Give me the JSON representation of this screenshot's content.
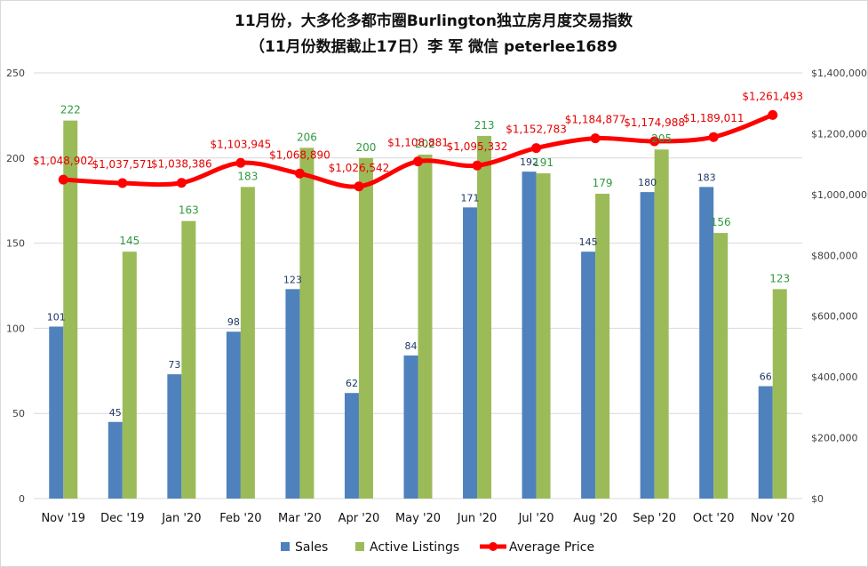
{
  "chart_data": {
    "type": "bar",
    "title": [
      "11月份，大多伦多都市圈Burlington独立房月度交易指数",
      "（11月份数据截止17日）李 军  微信  peterlee1689"
    ],
    "categories": [
      "Nov '19",
      "Dec '19",
      "Jan '20",
      "Feb '20",
      "Mar '20",
      "Apr '20",
      "May '20",
      "Jun '20",
      "Jul '20",
      "Aug '20",
      "Sep '20",
      "Oct '20",
      "Nov '20"
    ],
    "series": [
      {
        "name": "Sales",
        "type": "bar",
        "axis": "left",
        "color": "#4f81bd",
        "values": [
          101,
          45,
          73,
          98,
          123,
          62,
          84,
          171,
          192,
          145,
          180,
          183,
          66
        ],
        "labels": [
          "101",
          "45",
          "73",
          "98",
          "123",
          "62",
          "84",
          "171",
          "192",
          "145",
          "180",
          "183",
          "66"
        ]
      },
      {
        "name": "Active Listings",
        "type": "bar",
        "axis": "left",
        "color": "#9bbb59",
        "values": [
          222,
          145,
          163,
          183,
          206,
          200,
          202,
          213,
          191,
          179,
          205,
          156,
          123
        ],
        "labels": [
          "222",
          "145",
          "163",
          "183",
          "206",
          "200",
          "202",
          "213",
          "191",
          "179",
          "205",
          "156",
          "123"
        ]
      },
      {
        "name": "Average Price",
        "type": "line",
        "axis": "right",
        "color": "#ff0000",
        "values": [
          1048902,
          1037571,
          1038386,
          1103945,
          1068890,
          1026542,
          1108881,
          1095332,
          1152783,
          1184877,
          1174988,
          1189011,
          1261493
        ],
        "labels": [
          "$1,048,902",
          "$1,037,571",
          "$1,038,386",
          "$1,103,945",
          "$1,068,890",
          "$1,026,542",
          "$1,108,881",
          "$1,095,332",
          "$1,152,783",
          "$1,184,877",
          "$1,174,988",
          "$1,189,011",
          "$1,261,493"
        ]
      }
    ],
    "y_left": {
      "min": 0,
      "max": 250,
      "ticks": [
        "0",
        "50",
        "100",
        "150",
        "200",
        "250"
      ]
    },
    "y_right": {
      "min": 0,
      "max": 1400000,
      "ticks": [
        "$0",
        "$200,000",
        "$400,000",
        "$600,000",
        "$800,000",
        "$1,000,000",
        "$1,200,000",
        "$1,400,000"
      ]
    },
    "grid": true,
    "legend": {
      "position": "bottom",
      "items": [
        "Sales",
        "Active Listings",
        "Average Price"
      ]
    }
  }
}
